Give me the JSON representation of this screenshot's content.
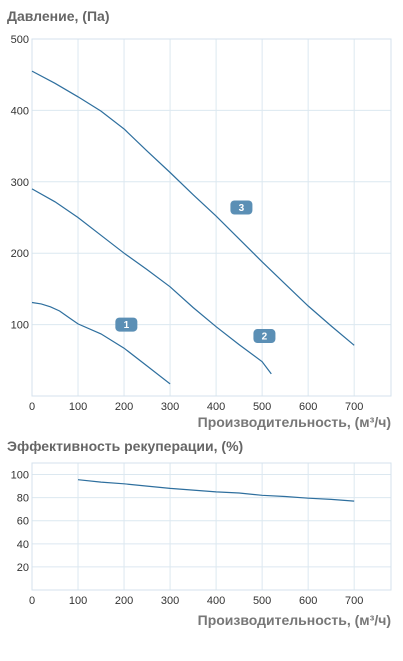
{
  "chart_data": [
    {
      "type": "line",
      "title": "Давление, (Па)",
      "xlabel": "Производительность, (м³/ч)",
      "ylabel": "",
      "xlim": [
        0,
        780
      ],
      "ylim": [
        0,
        500
      ],
      "x_ticks": [
        0,
        100,
        200,
        300,
        400,
        500,
        600,
        700
      ],
      "y_ticks": [
        100,
        200,
        300,
        400,
        500
      ],
      "grid": true,
      "line_color": "#2e6f9e",
      "badge_color": "#5b8fb5",
      "series": [
        {
          "name": "1",
          "x": [
            0,
            20,
            40,
            60,
            80,
            100,
            150,
            200,
            250,
            300
          ],
          "y": [
            131,
            129,
            125,
            119,
            110,
            101,
            87,
            67,
            42,
            17
          ],
          "label_at": [
            205,
            100
          ]
        },
        {
          "name": "2",
          "x": [
            0,
            50,
            100,
            150,
            200,
            250,
            300,
            350,
            400,
            450,
            500,
            520
          ],
          "y": [
            290,
            272,
            250,
            225,
            200,
            177,
            153,
            124,
            97,
            72,
            48,
            31
          ],
          "label_at": [
            505,
            84
          ]
        },
        {
          "name": "3",
          "x": [
            0,
            50,
            100,
            150,
            200,
            250,
            300,
            350,
            400,
            450,
            500,
            550,
            600,
            650,
            700
          ],
          "y": [
            455,
            438,
            419,
            399,
            374,
            343,
            313,
            282,
            252,
            220,
            188,
            157,
            126,
            98,
            71
          ],
          "label_at": [
            455,
            264
          ]
        }
      ]
    },
    {
      "type": "line",
      "title": "Эффективность рекуперации, (%)",
      "xlabel": "Производительность, (м³/ч)",
      "ylabel": "",
      "xlim": [
        0,
        780
      ],
      "ylim": [
        0,
        110
      ],
      "x_ticks": [
        0,
        100,
        200,
        300,
        400,
        500,
        600,
        700
      ],
      "y_ticks": [
        20,
        40,
        60,
        80,
        100
      ],
      "grid": true,
      "line_color": "#2e6f9e",
      "series": [
        {
          "x": [
            100,
            150,
            200,
            250,
            300,
            350,
            400,
            450,
            500,
            550,
            600,
            650,
            700
          ],
          "y": [
            95.5,
            93.5,
            92,
            90,
            88,
            86.5,
            85,
            84,
            82,
            81,
            79.5,
            78.5,
            77
          ]
        }
      ]
    }
  ]
}
